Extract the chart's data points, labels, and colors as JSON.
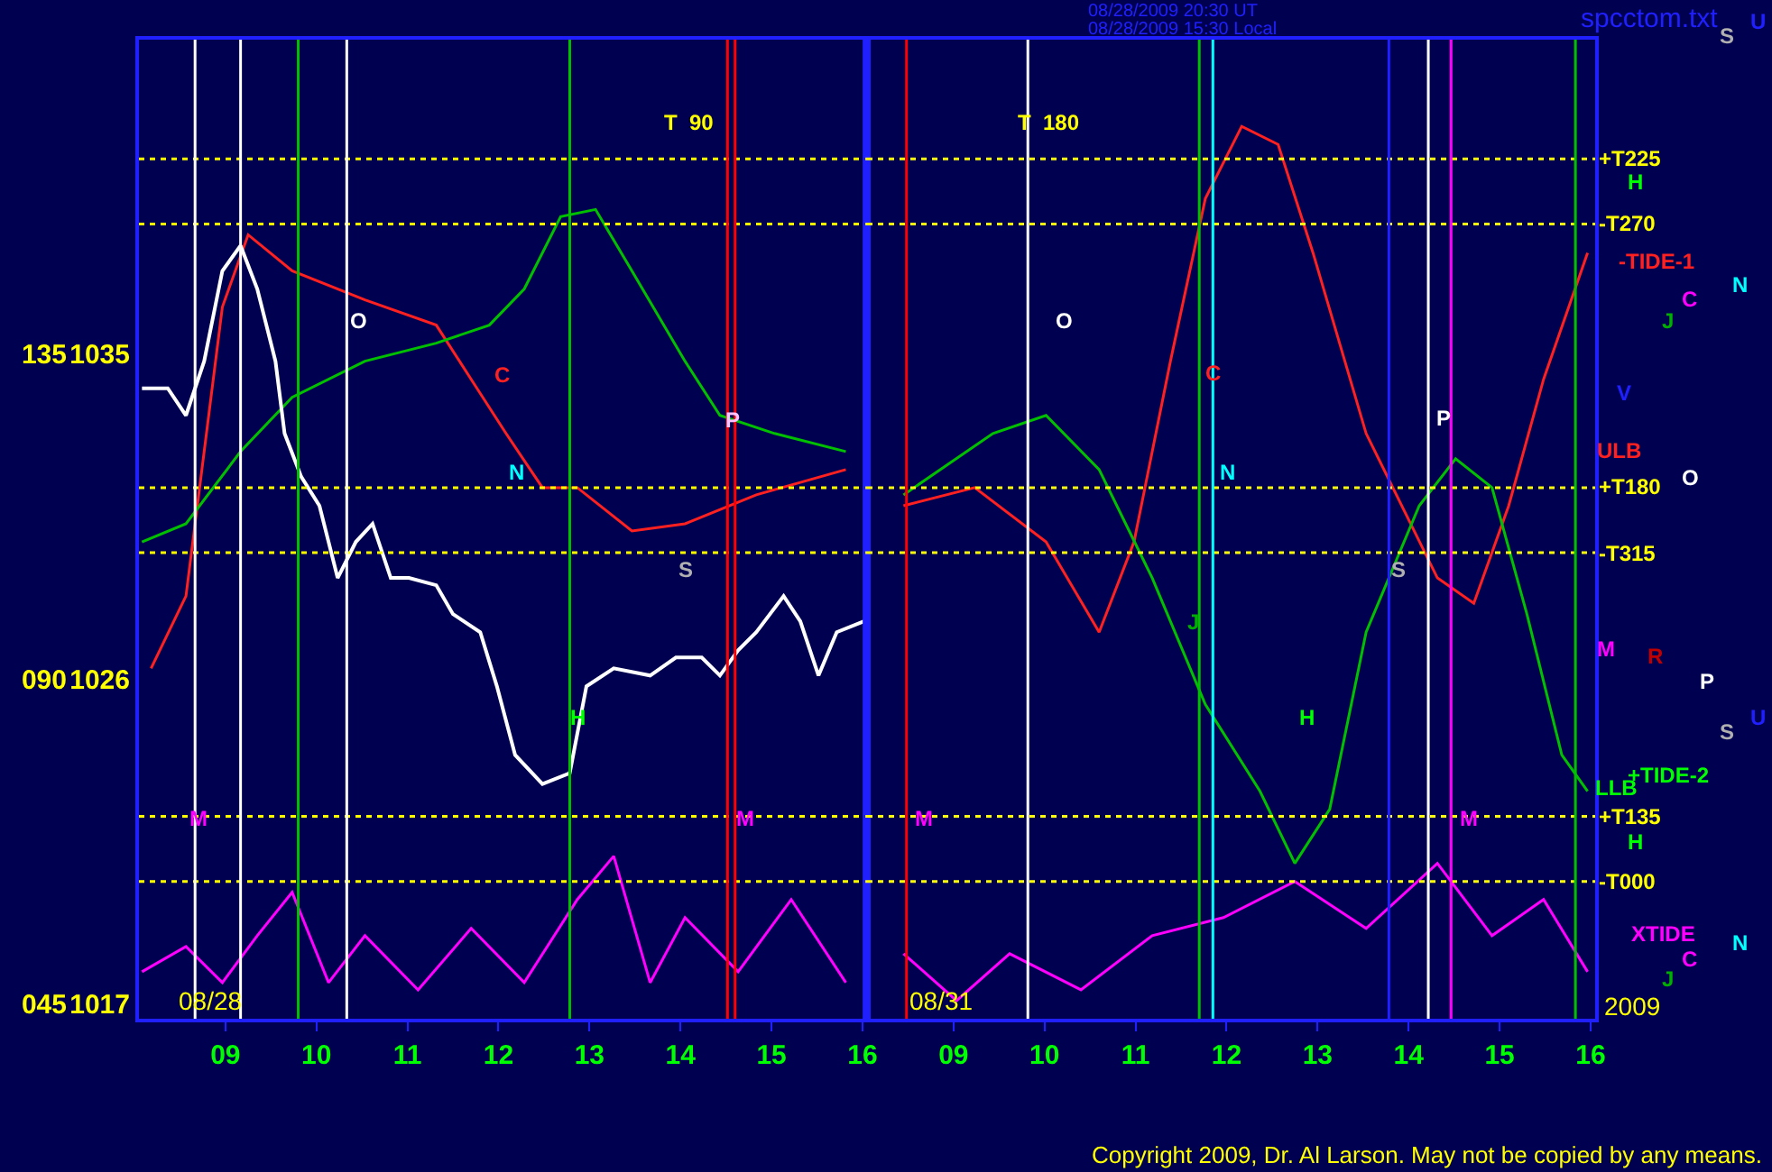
{
  "chart_data": [
    {
      "type": "line",
      "xlim": [
        "2009-08-28T08:03",
        "2009-08-28T16:03"
      ],
      "ylim": [
        1016.6,
        1043.7
      ],
      "y2lim": [
        43.0,
        178.5
      ],
      "xticks": [
        {
          "value": "2009-08-28T09:00",
          "label": "09"
        },
        {
          "value": "2009-08-28T10:00",
          "label": "10"
        },
        {
          "value": "2009-08-28T11:00",
          "label": "11"
        },
        {
          "value": "2009-08-28T12:00",
          "label": "12"
        },
        {
          "value": "2009-08-28T13:00",
          "label": "13"
        },
        {
          "value": "2009-08-28T14:00",
          "label": "14"
        },
        {
          "value": "2009-08-28T15:00",
          "label": "15"
        },
        {
          "value": "2009-08-28T16:00",
          "label": "16"
        }
      ],
      "yticks": [
        1017,
        1026,
        1035
      ],
      "y2ticks": [
        {
          "value": 45,
          "label": "045"
        },
        {
          "value": 90,
          "label": "090"
        },
        {
          "value": 135,
          "label": "135"
        }
      ],
      "grid": false,
      "marker": "none",
      "line_style": "solid",
      "series": [
        {
          "color": "#ff2020",
          "x": [
            "2009-08-28T08:11",
            "2009-08-28T08:34",
            "2009-08-28T08:58",
            "2009-08-28T09:15",
            "2009-08-28T09:44",
            "2009-08-28T10:32",
            "2009-08-28T11:19",
            "2009-08-28T11:42",
            "2009-08-28T12:05",
            "2009-08-28T12:29",
            "2009-08-28T12:52",
            "2009-08-28T13:28",
            "2009-08-28T14:03",
            "2009-08-28T14:50",
            "2009-08-28T15:49"
          ],
          "values": [
            1026.3,
            1028.3,
            1036.3,
            1038.3,
            1037.3,
            1036.5,
            1035.8,
            1034.3,
            1032.8,
            1031.3,
            1031.3,
            1030.1,
            1030.3,
            1031.1,
            1031.8
          ]
        },
        {
          "color": "#00c000",
          "x": [
            "2009-08-28T08:05",
            "2009-08-28T08:34",
            "2009-08-28T09:10",
            "2009-08-28T09:44",
            "2009-08-28T10:32",
            "2009-08-28T11:19",
            "2009-08-28T11:54",
            "2009-08-28T12:17",
            "2009-08-28T12:41",
            "2009-08-28T13:04",
            "2009-08-28T13:28",
            "2009-08-28T14:03",
            "2009-08-28T14:26",
            "2009-08-28T15:02",
            "2009-08-28T15:49"
          ],
          "values": [
            1029.8,
            1030.3,
            1032.3,
            1033.8,
            1034.8,
            1035.3,
            1035.8,
            1036.8,
            1038.8,
            1039.0,
            1037.3,
            1034.8,
            1033.3,
            1032.8,
            1032.3
          ]
        },
        {
          "color": "#ff00ff",
          "x": [
            "2009-08-28T08:05",
            "2009-08-28T08:34",
            "2009-08-28T08:58",
            "2009-08-28T09:21",
            "2009-08-28T09:44",
            "2009-08-28T10:08",
            "2009-08-28T10:32",
            "2009-08-28T11:07",
            "2009-08-28T11:42",
            "2009-08-28T12:17",
            "2009-08-28T12:52",
            "2009-08-28T13:16",
            "2009-08-28T13:40",
            "2009-08-28T14:03",
            "2009-08-28T14:38",
            "2009-08-28T15:13",
            "2009-08-28T15:49"
          ],
          "values": [
            1017.9,
            1018.6,
            1017.6,
            1018.9,
            1020.1,
            1017.6,
            1018.9,
            1017.4,
            1019.1,
            1017.6,
            1019.9,
            1021.1,
            1017.6,
            1019.4,
            1017.9,
            1019.9,
            1017.6
          ]
        },
        {
          "color": "#ffffff",
          "x": [
            "2009-08-28T08:05",
            "2009-08-28T08:22",
            "2009-08-28T08:34",
            "2009-08-28T08:46",
            "2009-08-28T08:58",
            "2009-08-28T09:10",
            "2009-08-28T09:21",
            "2009-08-28T09:33",
            "2009-08-28T09:39",
            "2009-08-28T09:50",
            "2009-08-28T10:02",
            "2009-08-28T10:14",
            "2009-08-28T10:26",
            "2009-08-28T10:37",
            "2009-08-28T10:49",
            "2009-08-28T11:01",
            "2009-08-28T11:19",
            "2009-08-28T11:30",
            "2009-08-28T11:48",
            "2009-08-28T11:59",
            "2009-08-28T12:11",
            "2009-08-28T12:29",
            "2009-08-28T12:47",
            "2009-08-28T12:58",
            "2009-08-28T13:16",
            "2009-08-28T13:40",
            "2009-08-28T13:57",
            "2009-08-28T14:14",
            "2009-08-28T14:26",
            "2009-08-28T14:38",
            "2009-08-28T14:50",
            "2009-08-28T15:08",
            "2009-08-28T15:19",
            "2009-08-28T15:31",
            "2009-08-28T15:43",
            "2009-08-28T16:01"
          ],
          "values": [
            1034.05,
            1034.05,
            1033.3,
            1034.8,
            1037.3,
            1038.0,
            1036.8,
            1034.8,
            1032.8,
            1031.6,
            1030.8,
            1028.8,
            1029.8,
            1030.3,
            1028.8,
            1028.8,
            1028.6,
            1027.8,
            1027.3,
            1025.8,
            1023.9,
            1023.1,
            1023.4,
            1025.8,
            1026.3,
            1026.1,
            1026.6,
            1026.6,
            1026.1,
            1026.8,
            1027.3,
            1028.3,
            1027.6,
            1026.1,
            1027.3,
            1027.6
          ]
        }
      ],
      "ref_lines": [
        {
          "axis": "y",
          "value": 1040.4,
          "color": "#ffff00",
          "line_style": "dotted"
        },
        {
          "axis": "y",
          "value": 1038.6,
          "color": "#ffff00",
          "line_style": "dotted"
        },
        {
          "axis": "y",
          "value": 1031.3,
          "color": "#ffff00",
          "line_style": "dotted"
        },
        {
          "axis": "y",
          "value": 1029.5,
          "color": "#ffff00",
          "line_style": "dotted"
        },
        {
          "axis": "y",
          "value": 1022.2,
          "color": "#ffff00",
          "line_style": "dotted"
        },
        {
          "axis": "y",
          "value": 1020.4,
          "color": "#ffff00",
          "line_style": "dotted"
        },
        {
          "axis": "x",
          "value": "2009-08-28T08:40",
          "color": "#ffffff"
        },
        {
          "axis": "x",
          "value": "2009-08-28T09:10",
          "color": "#ffffff"
        },
        {
          "axis": "x",
          "value": "2009-08-28T09:48",
          "color": "#00c000"
        },
        {
          "axis": "x",
          "value": "2009-08-28T10:20",
          "color": "#ffffff"
        },
        {
          "axis": "x",
          "value": "2009-08-28T12:47",
          "color": "#00c000"
        },
        {
          "axis": "x",
          "value": "2009-08-28T14:31",
          "color": "#ff0000"
        },
        {
          "axis": "x",
          "value": "2009-08-28T14:36",
          "color": "#ff0000"
        },
        {
          "axis": "x",
          "value": "2009-08-28T16:01",
          "color": "#2020ff"
        }
      ],
      "annotations": [
        "T  90",
        "08/28",
        "O",
        "C",
        "N",
        "P",
        "S",
        "H",
        "M",
        "M"
      ]
    },
    {
      "type": "line",
      "tick_labels": "x",
      "xlim": [
        "2009-08-31T08:03",
        "2009-08-31T16:03"
      ],
      "ylim": [
        1016.6,
        1043.7
      ],
      "xticks": [
        {
          "value": "2009-08-31T09:00",
          "label": "09"
        },
        {
          "value": "2009-08-31T10:00",
          "label": "10"
        },
        {
          "value": "2009-08-31T11:00",
          "label": "11"
        },
        {
          "value": "2009-08-31T12:00",
          "label": "12"
        },
        {
          "value": "2009-08-31T13:00",
          "label": "13"
        },
        {
          "value": "2009-08-31T14:00",
          "label": "14"
        },
        {
          "value": "2009-08-31T15:00",
          "label": "15"
        },
        {
          "value": "2009-08-31T16:00",
          "label": "16"
        }
      ],
      "grid": false,
      "marker": "none",
      "line_style": "solid",
      "series": [
        {
          "color": "#ff2020",
          "x": [
            "2009-08-31T08:27",
            "2009-08-31T09:14",
            "2009-08-31T10:01",
            "2009-08-31T10:36",
            "2009-08-31T10:59",
            "2009-08-31T11:23",
            "2009-08-31T11:46",
            "2009-08-31T12:10",
            "2009-08-31T12:34",
            "2009-08-31T12:57",
            "2009-08-31T13:32",
            "2009-08-31T14:19",
            "2009-08-31T14:43",
            "2009-08-31T15:06",
            "2009-08-31T15:29",
            "2009-08-31T15:58"
          ],
          "values": [
            1030.8,
            1031.3,
            1029.8,
            1027.3,
            1029.8,
            1034.8,
            1039.3,
            1041.3,
            1040.8,
            1037.8,
            1032.8,
            1028.8,
            1028.1,
            1030.8,
            1034.3,
            1037.8
          ]
        },
        {
          "color": "#00c000",
          "x": [
            "2009-08-31T08:27",
            "2009-08-31T09:26",
            "2009-08-31T10:01",
            "2009-08-31T10:36",
            "2009-08-31T11:11",
            "2009-08-31T11:46",
            "2009-08-31T12:22",
            "2009-08-31T12:45",
            "2009-08-31T13:08",
            "2009-08-31T13:32",
            "2009-08-31T14:07",
            "2009-08-31T14:31",
            "2009-08-31T14:55",
            "2009-08-31T15:18",
            "2009-08-31T15:41",
            "2009-08-31T15:58"
          ],
          "values": [
            1031.1,
            1032.8,
            1033.3,
            1031.8,
            1028.8,
            1025.3,
            1022.9,
            1020.9,
            1022.4,
            1027.3,
            1030.8,
            1032.1,
            1031.3,
            1027.8,
            1023.9,
            1022.9
          ]
        },
        {
          "color": "#ff00ff",
          "x": [
            "2009-08-31T08:27",
            "2009-08-31T09:02",
            "2009-08-31T09:37",
            "2009-08-31T10:24",
            "2009-08-31T11:11",
            "2009-08-31T11:58",
            "2009-08-31T12:45",
            "2009-08-31T13:32",
            "2009-08-31T14:19",
            "2009-08-31T14:55",
            "2009-08-31T15:29",
            "2009-08-31T15:58"
          ],
          "values": [
            1018.4,
            1017.1,
            1018.4,
            1017.4,
            1018.9,
            1019.4,
            1020.4,
            1019.1,
            1020.9,
            1018.9,
            1019.9,
            1017.9
          ]
        }
      ],
      "ref_lines": [
        {
          "axis": "y",
          "value": 1040.4,
          "label": "+T225",
          "color": "#ffff00",
          "line_style": "dotted"
        },
        {
          "axis": "y",
          "value": 1038.6,
          "label": "-T270",
          "color": "#ffff00",
          "line_style": "dotted"
        },
        {
          "axis": "y",
          "value": 1031.3,
          "label": "+T180",
          "color": "#ffff00",
          "line_style": "dotted"
        },
        {
          "axis": "y",
          "value": 1029.5,
          "label": "-T315",
          "color": "#ffff00",
          "line_style": "dotted"
        },
        {
          "axis": "y",
          "value": 1022.2,
          "label": "+T135",
          "color": "#ffff00",
          "line_style": "dotted"
        },
        {
          "axis": "y",
          "value": 1020.4,
          "label": "-T000",
          "color": "#ffff00",
          "line_style": "dotted"
        },
        {
          "axis": "x",
          "value": "2009-08-31T08:29",
          "color": "#ff0000"
        },
        {
          "axis": "x",
          "value": "2009-08-31T09:49",
          "color": "#ffffff"
        },
        {
          "axis": "x",
          "value": "2009-08-31T11:42",
          "color": "#00c000"
        },
        {
          "axis": "x",
          "value": "2009-08-31T11:51",
          "color": "#00ffff"
        },
        {
          "axis": "x",
          "value": "2009-08-31T13:47",
          "color": "#2020ff"
        },
        {
          "axis": "x",
          "value": "2009-08-31T14:13",
          "color": "#ffffff"
        },
        {
          "axis": "x",
          "value": "2009-08-31T14:28",
          "color": "#ff00ff"
        },
        {
          "axis": "x",
          "value": "2009-08-31T15:50",
          "color": "#00c000"
        }
      ],
      "annotations": [
        "08/28/2009 20:30 UT",
        "08/28/2009 15:30 Local",
        "spcctom.txt",
        "T  180",
        "08/31",
        "M",
        "O",
        "C",
        "N",
        "J",
        "H",
        "S",
        "P",
        "M",
        "U",
        "S",
        "H",
        "-TIDE-1",
        "N",
        "C",
        "J",
        "V",
        "ULB",
        "O",
        "M",
        "R",
        "P",
        "U",
        "S",
        "+TIDE-2",
        "LLB",
        "H",
        "XTIDE",
        "N",
        "C",
        "J",
        "2009",
        "Copyright 2009, Dr. Al Larson. May not be copied by any means."
      ]
    }
  ]
}
